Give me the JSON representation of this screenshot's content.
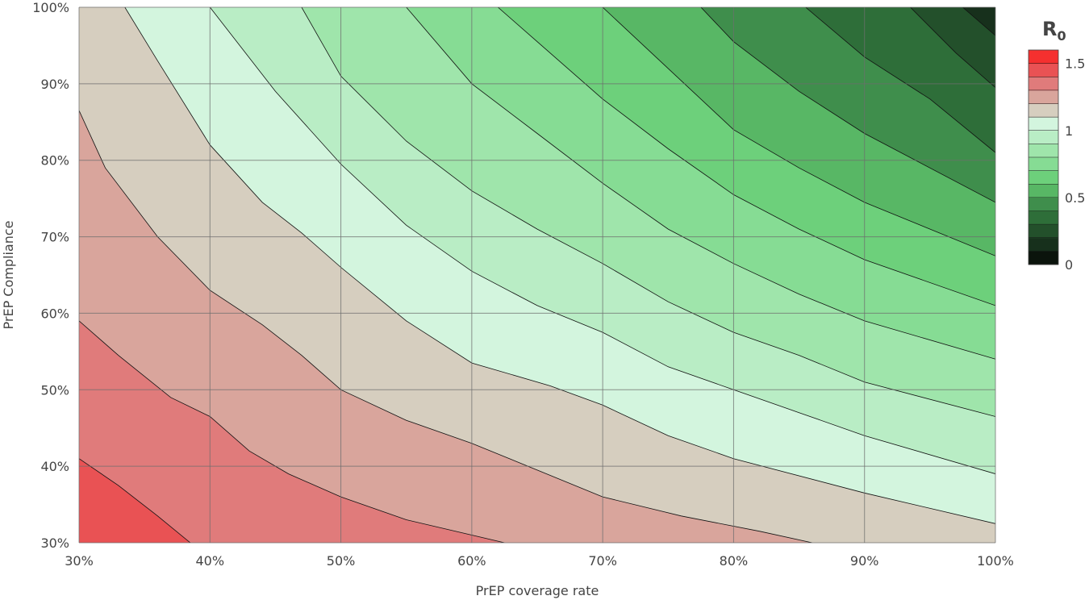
{
  "chart_data": {
    "type": "contour",
    "xlabel": "PrEP coverage rate",
    "ylabel": "PrEP Compliance",
    "x_ticks": [
      "30%",
      "40%",
      "50%",
      "60%",
      "70%",
      "80%",
      "90%",
      "100%"
    ],
    "y_ticks": [
      "30%",
      "40%",
      "50%",
      "60%",
      "70%",
      "80%",
      "90%",
      "100%"
    ],
    "xlim": [
      0.3,
      1.0
    ],
    "ylim": [
      0.3,
      1.0
    ],
    "grid": true,
    "colorbar": {
      "title_main": "R",
      "title_sub": "0",
      "ticks": [
        "0",
        "0.5",
        "1",
        "1.5"
      ],
      "range": [
        0,
        1.6
      ],
      "step": 0.1,
      "colors": [
        "#0b140c",
        "#17301c",
        "#23502b",
        "#2e6e39",
        "#3f8e4c",
        "#58b765",
        "#6dd07b",
        "#86dc94",
        "#9fe5ab",
        "#b9edc5",
        "#d3f5de",
        "#d6cebf",
        "#d9a59c",
        "#e07b7b",
        "#e95254",
        "#f5302f"
      ]
    },
    "contour_lines": [
      {
        "level": 1.4,
        "points": [
          [
            0.3,
            0.41
          ],
          [
            0.33,
            0.375
          ],
          [
            0.36,
            0.335
          ],
          [
            0.385,
            0.3
          ]
        ]
      },
      {
        "level": 1.3,
        "points": [
          [
            0.3,
            0.59
          ],
          [
            0.33,
            0.545
          ],
          [
            0.37,
            0.49
          ],
          [
            0.4,
            0.465
          ],
          [
            0.43,
            0.42
          ],
          [
            0.46,
            0.39
          ],
          [
            0.5,
            0.36
          ],
          [
            0.55,
            0.33
          ],
          [
            0.6,
            0.31
          ],
          [
            0.625,
            0.3
          ]
        ]
      },
      {
        "level": 1.2,
        "points": [
          [
            0.3,
            0.865
          ],
          [
            0.32,
            0.79
          ],
          [
            0.36,
            0.7
          ],
          [
            0.4,
            0.63
          ],
          [
            0.44,
            0.585
          ],
          [
            0.47,
            0.545
          ],
          [
            0.5,
            0.5
          ],
          [
            0.55,
            0.46
          ],
          [
            0.6,
            0.43
          ],
          [
            0.65,
            0.395
          ],
          [
            0.7,
            0.36
          ],
          [
            0.76,
            0.335
          ],
          [
            0.82,
            0.315
          ],
          [
            0.86,
            0.3
          ]
        ]
      },
      {
        "level": 1.1,
        "points": [
          [
            0.335,
            1.0
          ],
          [
            0.36,
            0.93
          ],
          [
            0.4,
            0.82
          ],
          [
            0.44,
            0.745
          ],
          [
            0.47,
            0.705
          ],
          [
            0.5,
            0.66
          ],
          [
            0.55,
            0.59
          ],
          [
            0.6,
            0.535
          ],
          [
            0.66,
            0.505
          ],
          [
            0.7,
            0.48
          ],
          [
            0.75,
            0.44
          ],
          [
            0.8,
            0.41
          ],
          [
            0.9,
            0.365
          ],
          [
            1.0,
            0.325
          ]
        ]
      },
      {
        "level": 1.0,
        "points": [
          [
            0.4,
            1.0
          ],
          [
            0.45,
            0.89
          ],
          [
            0.5,
            0.795
          ],
          [
            0.55,
            0.715
          ],
          [
            0.6,
            0.655
          ],
          [
            0.65,
            0.61
          ],
          [
            0.7,
            0.575
          ],
          [
            0.75,
            0.53
          ],
          [
            0.8,
            0.5
          ],
          [
            0.85,
            0.47
          ],
          [
            0.9,
            0.44
          ],
          [
            1.0,
            0.39
          ]
        ]
      },
      {
        "level": 0.9,
        "points": [
          [
            0.47,
            1.0
          ],
          [
            0.5,
            0.91
          ],
          [
            0.55,
            0.825
          ],
          [
            0.6,
            0.76
          ],
          [
            0.65,
            0.71
          ],
          [
            0.7,
            0.665
          ],
          [
            0.75,
            0.615
          ],
          [
            0.8,
            0.575
          ],
          [
            0.85,
            0.545
          ],
          [
            0.9,
            0.51
          ],
          [
            1.0,
            0.465
          ]
        ]
      },
      {
        "level": 0.8,
        "points": [
          [
            0.55,
            1.0
          ],
          [
            0.6,
            0.9
          ],
          [
            0.65,
            0.835
          ],
          [
            0.7,
            0.77
          ],
          [
            0.75,
            0.71
          ],
          [
            0.8,
            0.665
          ],
          [
            0.85,
            0.625
          ],
          [
            0.9,
            0.59
          ],
          [
            1.0,
            0.54
          ]
        ]
      },
      {
        "level": 0.7,
        "points": [
          [
            0.62,
            1.0
          ],
          [
            0.65,
            0.955
          ],
          [
            0.7,
            0.88
          ],
          [
            0.75,
            0.815
          ],
          [
            0.8,
            0.755
          ],
          [
            0.85,
            0.71
          ],
          [
            0.9,
            0.67
          ],
          [
            1.0,
            0.61
          ]
        ]
      },
      {
        "level": 0.6,
        "points": [
          [
            0.7,
            1.0
          ],
          [
            0.75,
            0.92
          ],
          [
            0.8,
            0.84
          ],
          [
            0.85,
            0.79
          ],
          [
            0.9,
            0.745
          ],
          [
            1.0,
            0.675
          ]
        ]
      },
      {
        "level": 0.5,
        "points": [
          [
            0.775,
            1.0
          ],
          [
            0.8,
            0.955
          ],
          [
            0.85,
            0.89
          ],
          [
            0.9,
            0.835
          ],
          [
            1.0,
            0.745
          ]
        ]
      },
      {
        "level": 0.4,
        "points": [
          [
            0.855,
            1.0
          ],
          [
            0.9,
            0.935
          ],
          [
            0.95,
            0.88
          ],
          [
            1.0,
            0.81
          ]
        ]
      },
      {
        "level": 0.3,
        "points": [
          [
            0.935,
            1.0
          ],
          [
            0.97,
            0.94
          ],
          [
            1.0,
            0.895
          ]
        ]
      },
      {
        "level": 0.2,
        "points": [
          [
            0.975,
            1.0
          ],
          [
            1.0,
            0.963
          ]
        ]
      }
    ]
  }
}
